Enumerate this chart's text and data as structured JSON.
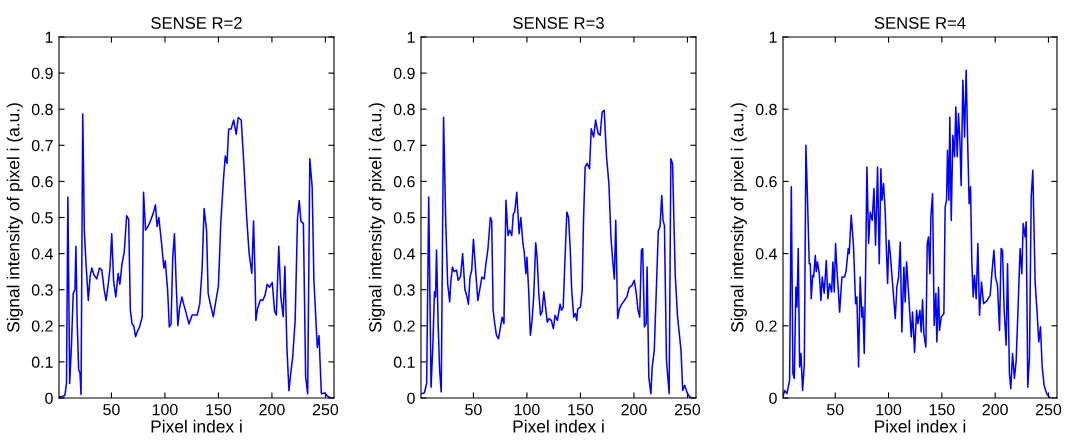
{
  "chart_data": [
    {
      "type": "line",
      "title": "SENSE R=2",
      "xlabel": "Pixel index i",
      "ylabel": "Signal intensity of pixel i (a.u.)",
      "color": "#0000ff",
      "grid": false,
      "xlim": [
        1,
        258
      ],
      "ylim": [
        0,
        1
      ],
      "xticks": [
        50,
        100,
        150,
        200,
        250
      ],
      "yticks": [
        0,
        0.1,
        0.2,
        0.3,
        0.4,
        0.5,
        0.6,
        0.7,
        0.8,
        0.9,
        1
      ],
      "x": [
        1,
        4.8,
        6.5,
        8,
        9.3,
        11,
        12.7,
        14.3,
        15.9,
        16.8,
        18,
        19.4,
        20.6,
        21.6,
        23.2,
        24.7,
        26.3,
        28.4,
        30,
        31.6,
        33.8,
        36.3,
        38.8,
        41,
        43.2,
        45,
        47.2,
        48.7,
        50.3,
        52,
        54.1,
        56.3,
        57.9,
        59.8,
        62,
        64.2,
        66.1,
        67.7,
        69.3,
        70.9,
        72.5,
        74.1,
        76.3,
        78.8,
        80,
        81.9,
        84.1,
        85.7,
        88.9,
        91.1,
        92.7,
        94.3,
        96.8,
        99,
        100.3,
        102.5,
        104.1,
        105.7,
        107.3,
        108.9,
        110.5,
        112.1,
        113.7,
        115.9,
        117.5,
        119.4,
        122.5,
        125.4,
        130.1,
        132.5,
        134.7,
        136.6,
        138.9,
        140.4,
        142.7,
        145.2,
        147.1,
        150,
        152.2,
        154.8,
        156.4,
        158,
        159.6,
        161.8,
        164.3,
        166.6,
        168.5,
        171.3,
        173.9,
        176.4,
        178.7,
        181.2,
        182.8,
        184.1,
        185,
        186.6,
        189.2,
        191.4,
        193.6,
        195.5,
        197.8,
        200.3,
        202.5,
        204.1,
        206.4,
        208.3,
        210.5,
        212.1,
        214,
        215.9,
        217.5,
        219.4,
        221.7,
        223.9,
        225.5,
        227.1,
        229.4,
        231.5,
        233.4,
        235.4,
        237.6,
        239.2,
        242.4,
        244,
        246.2,
        249.4,
        251.9,
        255.1
      ],
      "values": [
        0.003,
        0.005,
        0.007,
        0.04,
        0.557,
        0.04,
        0.15,
        0.29,
        0.3,
        0.42,
        0.21,
        0.077,
        0.07,
        0.01,
        0.787,
        0.46,
        0.37,
        0.27,
        0.335,
        0.36,
        0.34,
        0.33,
        0.36,
        0.355,
        0.3,
        0.27,
        0.32,
        0.36,
        0.455,
        0.325,
        0.28,
        0.345,
        0.315,
        0.37,
        0.405,
        0.505,
        0.495,
        0.243,
        0.205,
        0.2,
        0.17,
        0.183,
        0.197,
        0.225,
        0.57,
        0.465,
        0.475,
        0.485,
        0.51,
        0.535,
        0.475,
        0.5,
        0.43,
        0.36,
        0.38,
        0.3,
        0.197,
        0.205,
        0.39,
        0.455,
        0.317,
        0.2,
        0.25,
        0.28,
        0.26,
        0.24,
        0.205,
        0.23,
        0.23,
        0.26,
        0.355,
        0.525,
        0.465,
        0.29,
        0.257,
        0.225,
        0.26,
        0.31,
        0.485,
        0.61,
        0.67,
        0.65,
        0.745,
        0.745,
        0.77,
        0.73,
        0.777,
        0.77,
        0.64,
        0.5,
        0.4,
        0.345,
        0.49,
        0.355,
        0.215,
        0.248,
        0.272,
        0.27,
        0.285,
        0.315,
        0.307,
        0.32,
        0.24,
        0.23,
        0.42,
        0.28,
        0.225,
        0.365,
        0.14,
        0.02,
        0.067,
        0.113,
        0.215,
        0.497,
        0.547,
        0.49,
        0.483,
        0.058,
        0.012,
        0.663,
        0.584,
        0.326,
        0.14,
        0.173,
        0.012,
        0.014,
        0.005,
        0
      ]
    },
    {
      "type": "line",
      "title": "SENSE R=3",
      "xlabel": "Pixel index i",
      "ylabel": "Signal intensity of pixel i (a.u.)",
      "color": "#0000ff",
      "grid": false,
      "xlim": [
        1,
        258
      ],
      "ylim": [
        0,
        1
      ],
      "xticks": [
        50,
        100,
        150,
        200,
        250
      ],
      "yticks": [
        0,
        0.1,
        0.2,
        0.3,
        0.4,
        0.5,
        0.6,
        0.7,
        0.8,
        0.9,
        1
      ],
      "x": [
        1,
        4.1,
        6.3,
        8.2,
        10.4,
        12,
        13.6,
        14.6,
        15.5,
        17.1,
        18.4,
        19.9,
        22.1,
        24,
        25.9,
        27.8,
        28.8,
        30.4,
        32,
        34.2,
        35.8,
        38,
        39.9,
        42.1,
        43.7,
        45.3,
        46.8,
        48.4,
        50,
        51.6,
        54.1,
        56.3,
        57.9,
        60.1,
        61.7,
        63.6,
        65.8,
        67.1,
        68.4,
        69.9,
        71.5,
        73.4,
        75.3,
        76.9,
        78.5,
        80.4,
        82.3,
        83.9,
        85.8,
        87.3,
        88.6,
        90.5,
        92.7,
        94.3,
        96.2,
        97.5,
        99,
        100,
        101.6,
        103.2,
        104.8,
        106.3,
        108.2,
        109.5,
        111.1,
        112.7,
        114.2,
        115.8,
        117.4,
        119,
        120.6,
        122.8,
        124.7,
        126.3,
        128.5,
        131,
        132.3,
        133.9,
        135.4,
        137.3,
        138.9,
        140.5,
        141.8,
        143.7,
        145.3,
        146.5,
        147.5,
        150,
        151.6,
        152.8,
        154.4,
        156.3,
        158.5,
        160.1,
        162.3,
        164.2,
        166.5,
        168.4,
        170.3,
        172.2,
        174.4,
        176.6,
        178.5,
        180.4,
        181.7,
        183,
        184.8,
        186.4,
        188.6,
        191.1,
        193.4,
        195.6,
        198.1,
        200.3,
        202.2,
        203.8,
        205.4,
        207,
        208.2,
        209.8,
        211.4,
        212.3,
        213.9,
        215.8,
        217.1,
        219,
        220.9,
        222.8,
        224.4,
        226,
        227.2,
        228.5,
        230.4,
        232.9,
        234.5,
        236.1,
        238.6,
        240.8,
        242.4,
        244,
        245.6,
        247.5,
        249.4,
        251.9,
        255.1
      ],
      "values": [
        0.012,
        0.014,
        0.04,
        0.557,
        0.03,
        0.14,
        0.294,
        0.28,
        0.41,
        0.197,
        0.077,
        0.017,
        0.778,
        0.5,
        0.317,
        0.266,
        0.32,
        0.363,
        0.35,
        0.354,
        0.326,
        0.337,
        0.4,
        0.3,
        0.284,
        0.26,
        0.335,
        0.354,
        0.44,
        0.372,
        0.27,
        0.307,
        0.335,
        0.33,
        0.372,
        0.414,
        0.5,
        0.49,
        0.243,
        0.206,
        0.174,
        0.164,
        0.197,
        0.224,
        0.206,
        0.548,
        0.45,
        0.465,
        0.45,
        0.51,
        0.515,
        0.57,
        0.455,
        0.5,
        0.43,
        0.404,
        0.344,
        0.39,
        0.3,
        0.174,
        0.215,
        0.28,
        0.43,
        0.39,
        0.29,
        0.229,
        0.24,
        0.294,
        0.252,
        0.21,
        0.22,
        0.215,
        0.192,
        0.229,
        0.215,
        0.26,
        0.243,
        0.252,
        0.372,
        0.515,
        0.5,
        0.41,
        0.3,
        0.224,
        0.234,
        0.215,
        0.247,
        0.252,
        0.298,
        0.483,
        0.64,
        0.65,
        0.635,
        0.746,
        0.723,
        0.77,
        0.733,
        0.728,
        0.792,
        0.797,
        0.668,
        0.594,
        0.446,
        0.372,
        0.33,
        0.492,
        0.22,
        0.247,
        0.26,
        0.27,
        0.28,
        0.306,
        0.312,
        0.326,
        0.29,
        0.243,
        0.224,
        0.41,
        0.414,
        0.197,
        0.206,
        0.363,
        0.058,
        0.012,
        0.086,
        0.132,
        0.298,
        0.464,
        0.474,
        0.561,
        0.492,
        0.478,
        0.104,
        0.012,
        0.663,
        0.649,
        0.34,
        0.224,
        0.178,
        0.132,
        0.021,
        0.035,
        0.017,
        0.003,
        0
      ]
    },
    {
      "type": "line",
      "title": "SENSE R=4",
      "xlabel": "Pixel index i",
      "ylabel": "Signal intensity of pixel i (a.u.)",
      "color": "#0000ff",
      "grid": false,
      "xlim": [
        1,
        258
      ],
      "ylim": [
        0,
        1
      ],
      "xticks": [
        50,
        100,
        150,
        200,
        250
      ],
      "yticks": [
        0,
        0.2,
        0.4,
        0.6,
        0.8,
        1
      ],
      "x": [
        1,
        2.5,
        4.7,
        7.2,
        8.8,
        10.3,
        11.6,
        13.1,
        14.1,
        15.3,
        16.6,
        17.8,
        19.4,
        21,
        22.5,
        24.1,
        25.6,
        26.6,
        27.5,
        28.8,
        29.7,
        31.3,
        32.2,
        33.4,
        35,
        36.6,
        37.8,
        39.7,
        41.6,
        43.1,
        44.7,
        46.6,
        47.8,
        49.1,
        50.3,
        51.6,
        53.1,
        54.1,
        56.3,
        58.8,
        60.3,
        62.2,
        63.1,
        65,
        67.2,
        69.1,
        70.3,
        71.9,
        73.4,
        75,
        75.9,
        77.2,
        78.4,
        79.7,
        81.3,
        82.8,
        84.7,
        86.3,
        87.8,
        89.7,
        91.3,
        92.8,
        93.8,
        95.3,
        96.9,
        97.8,
        99.1,
        100.3,
        101.6,
        106.3,
        107.8,
        109.4,
        111,
        112.5,
        114.4,
        115.6,
        116.9,
        118.8,
        121.3,
        122.5,
        124.4,
        126.3,
        127.5,
        129.4,
        130.6,
        131.9,
        133.1,
        135,
        136.3,
        137.5,
        138.8,
        139.7,
        141.3,
        142.8,
        144.4,
        145.3,
        146.9,
        147.8,
        149.4,
        151.9,
        153.1,
        154.4,
        155.3,
        156.6,
        157.5,
        158.8,
        160.3,
        161.9,
        163.1,
        164.4,
        165.6,
        166.9,
        168.1,
        169.7,
        171.3,
        172.8,
        174.1,
        175.6,
        176.9,
        178.1,
        179.4,
        180.6,
        182.2,
        183.8,
        185.3,
        187.2,
        189.1,
        192.2,
        195.3,
        196.9,
        198.8,
        200.3,
        202.2,
        204.1,
        205.6,
        206.9,
        208.4,
        210.3,
        211.6,
        213.4,
        214.7,
        216.3,
        218.1,
        219.7,
        221.3,
        223.4,
        225,
        226.3,
        228.1,
        229.1,
        230.6,
        232.2,
        233.8,
        235.3,
        237.5,
        239.4,
        240.9,
        242.5,
        244.1,
        245.9,
        248.4,
        251.6
      ],
      "values": [
        0.003,
        0.021,
        0.012,
        0.05,
        0.585,
        0.067,
        0.054,
        0.307,
        0.252,
        0.414,
        0.086,
        0.123,
        0.021,
        0.095,
        0.7,
        0.538,
        0.372,
        0.372,
        0.275,
        0.34,
        0.335,
        0.395,
        0.35,
        0.377,
        0.344,
        0.27,
        0.335,
        0.29,
        0.381,
        0.275,
        0.317,
        0.294,
        0.377,
        0.294,
        0.428,
        0.354,
        0.29,
        0.238,
        0.335,
        0.335,
        0.354,
        0.414,
        0.4,
        0.506,
        0.418,
        0.261,
        0.28,
        0.086,
        0.335,
        0.224,
        0.252,
        0.123,
        0.335,
        0.64,
        0.428,
        0.515,
        0.492,
        0.58,
        0.423,
        0.64,
        0.372,
        0.635,
        0.548,
        0.594,
        0.515,
        0.428,
        0.317,
        0.437,
        0.4,
        0.22,
        0.307,
        0.335,
        0.432,
        0.183,
        0.363,
        0.266,
        0.377,
        0.29,
        0.169,
        0.238,
        0.127,
        0.243,
        0.206,
        0.243,
        0.183,
        0.272,
        0.178,
        0.141,
        0.428,
        0.446,
        0.344,
        0.501,
        0.566,
        0.201,
        0.29,
        0.155,
        0.307,
        0.187,
        0.224,
        0.234,
        0.529,
        0.548,
        0.686,
        0.548,
        0.778,
        0.492,
        0.728,
        0.668,
        0.806,
        0.668,
        0.788,
        0.714,
        0.589,
        0.88,
        0.723,
        0.908,
        0.723,
        0.538,
        0.585,
        0.377,
        0.28,
        0.34,
        0.275,
        0.428,
        0.229,
        0.321,
        0.261,
        0.269,
        0.284,
        0.344,
        0.409,
        0.335,
        0.312,
        0.187,
        0.414,
        0.409,
        0.247,
        0.146,
        0.372,
        0.067,
        0.026,
        0.123,
        0.054,
        0.104,
        0.234,
        0.414,
        0.344,
        0.483,
        0.446,
        0.488,
        0.03,
        0.114,
        0.557,
        0.631,
        0.321,
        0.234,
        0.155,
        0.197,
        0.086,
        0.035,
        0.012,
        0
      ]
    }
  ]
}
